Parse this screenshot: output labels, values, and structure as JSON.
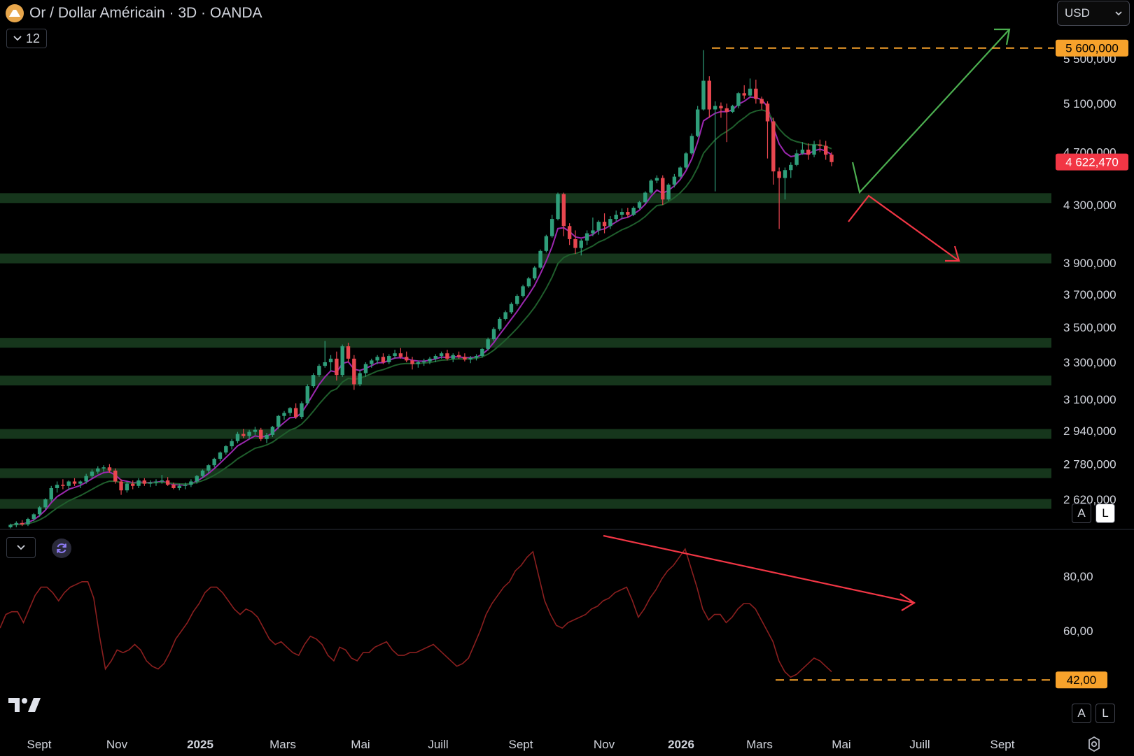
{
  "header": {
    "title": "Or / Dollar Américain · 3D · OANDA",
    "interval_badge": "12",
    "currency": "USD"
  },
  "chart_data": {
    "type": "candlestick",
    "symbol": "XAUUSD",
    "current_price": "4 622,470",
    "price_axis": {
      "ticks": [
        {
          "label": "5 500,000",
          "value": 5500
        },
        {
          "label": "5 100,000",
          "value": 5100
        },
        {
          "label": "4 700,000",
          "value": 4700
        },
        {
          "label": "4 300,000",
          "value": 4300
        },
        {
          "label": "3 900,000",
          "value": 3900
        },
        {
          "label": "3 700,000",
          "value": 3700
        },
        {
          "label": "3 500,000",
          "value": 3500
        },
        {
          "label": "3 300,000",
          "value": 3300
        },
        {
          "label": "3 100,000",
          "value": 3100
        },
        {
          "label": "2 940,000",
          "value": 2940
        },
        {
          "label": "2 780,000",
          "value": 2780
        },
        {
          "label": "2 620,000",
          "value": 2620
        }
      ],
      "scale": "log"
    },
    "price_markers": [
      {
        "label": "5 600,000",
        "value": 5600,
        "color": "#f7a22b",
        "style": "dashed"
      },
      {
        "label": "4 622,470",
        "value": 4622.47,
        "color": "#f23645",
        "style": "solid"
      }
    ],
    "support_zones": [
      4350,
      3930,
      3410,
      3200,
      2925,
      2738,
      2600
    ],
    "time_axis": [
      "Sept",
      "Nov",
      "2025",
      "Mars",
      "Mai",
      "Juill",
      "Sept",
      "Nov",
      "2026",
      "Mars",
      "Mai",
      "Juill",
      "Sept"
    ],
    "time_axis_bold": [
      "2025",
      "2026"
    ],
    "candles_ohlc": [
      [
        2500,
        2515,
        2495,
        2510
      ],
      [
        2510,
        2525,
        2500,
        2518
      ],
      [
        2518,
        2530,
        2505,
        2512
      ],
      [
        2512,
        2540,
        2505,
        2535
      ],
      [
        2535,
        2560,
        2525,
        2555
      ],
      [
        2555,
        2590,
        2545,
        2585
      ],
      [
        2585,
        2625,
        2575,
        2620
      ],
      [
        2620,
        2680,
        2610,
        2670
      ],
      [
        2670,
        2700,
        2650,
        2685
      ],
      [
        2685,
        2710,
        2665,
        2680
      ],
      [
        2680,
        2705,
        2660,
        2700
      ],
      [
        2700,
        2715,
        2680,
        2690
      ],
      [
        2690,
        2705,
        2670,
        2700
      ],
      [
        2700,
        2735,
        2690,
        2725
      ],
      [
        2725,
        2755,
        2715,
        2745
      ],
      [
        2745,
        2770,
        2735,
        2760
      ],
      [
        2760,
        2775,
        2745,
        2765
      ],
      [
        2765,
        2780,
        2740,
        2750
      ],
      [
        2750,
        2760,
        2690,
        2700
      ],
      [
        2700,
        2710,
        2640,
        2660
      ],
      [
        2660,
        2700,
        2650,
        2690
      ],
      [
        2690,
        2705,
        2665,
        2680
      ],
      [
        2680,
        2715,
        2670,
        2705
      ],
      [
        2705,
        2715,
        2680,
        2690
      ],
      [
        2690,
        2705,
        2675,
        2695
      ],
      [
        2695,
        2710,
        2680,
        2700
      ],
      [
        2700,
        2730,
        2690,
        2705
      ],
      [
        2705,
        2720,
        2680,
        2685
      ],
      [
        2685,
        2695,
        2665,
        2670
      ],
      [
        2670,
        2690,
        2660,
        2680
      ],
      [
        2680,
        2695,
        2665,
        2685
      ],
      [
        2685,
        2710,
        2675,
        2700
      ],
      [
        2700,
        2730,
        2690,
        2725
      ],
      [
        2725,
        2755,
        2715,
        2750
      ],
      [
        2750,
        2780,
        2740,
        2775
      ],
      [
        2775,
        2810,
        2765,
        2805
      ],
      [
        2805,
        2840,
        2795,
        2835
      ],
      [
        2835,
        2870,
        2825,
        2865
      ],
      [
        2865,
        2900,
        2850,
        2890
      ],
      [
        2890,
        2935,
        2880,
        2925
      ],
      [
        2925,
        2950,
        2905,
        2915
      ],
      [
        2915,
        2945,
        2900,
        2935
      ],
      [
        2935,
        2960,
        2920,
        2945
      ],
      [
        2945,
        2955,
        2890,
        2900
      ],
      [
        2900,
        2930,
        2880,
        2920
      ],
      [
        2920,
        2965,
        2910,
        2960
      ],
      [
        2960,
        3020,
        2950,
        3015
      ],
      [
        3015,
        3040,
        2995,
        3030
      ],
      [
        3030,
        3060,
        3015,
        3055
      ],
      [
        3055,
        3080,
        3000,
        3010
      ],
      [
        3010,
        3090,
        3000,
        3080
      ],
      [
        3080,
        3180,
        3070,
        3170
      ],
      [
        3170,
        3240,
        3160,
        3230
      ],
      [
        3230,
        3290,
        3220,
        3280
      ],
      [
        3280,
        3420,
        3270,
        3300
      ],
      [
        3300,
        3340,
        3250,
        3320
      ],
      [
        3320,
        3360,
        3200,
        3230
      ],
      [
        3230,
        3400,
        3220,
        3390
      ],
      [
        3390,
        3410,
        3300,
        3320
      ],
      [
        3320,
        3340,
        3150,
        3180
      ],
      [
        3180,
        3260,
        3170,
        3240
      ],
      [
        3240,
        3300,
        3220,
        3290
      ],
      [
        3290,
        3320,
        3270,
        3310
      ],
      [
        3310,
        3340,
        3290,
        3330
      ],
      [
        3330,
        3350,
        3290,
        3300
      ],
      [
        3300,
        3345,
        3290,
        3335
      ],
      [
        3335,
        3370,
        3320,
        3350
      ],
      [
        3350,
        3380,
        3320,
        3330
      ],
      [
        3330,
        3360,
        3300,
        3310
      ],
      [
        3310,
        3330,
        3260,
        3290
      ],
      [
        3290,
        3310,
        3270,
        3300
      ],
      [
        3300,
        3320,
        3280,
        3305
      ],
      [
        3305,
        3330,
        3290,
        3320
      ],
      [
        3320,
        3345,
        3300,
        3335
      ],
      [
        3335,
        3360,
        3320,
        3350
      ],
      [
        3350,
        3370,
        3310,
        3320
      ],
      [
        3320,
        3350,
        3300,
        3340
      ],
      [
        3340,
        3360,
        3320,
        3330
      ],
      [
        3330,
        3350,
        3305,
        3315
      ],
      [
        3315,
        3335,
        3295,
        3325
      ],
      [
        3325,
        3345,
        3310,
        3335
      ],
      [
        3335,
        3380,
        3325,
        3375
      ],
      [
        3375,
        3440,
        3365,
        3430
      ],
      [
        3430,
        3500,
        3420,
        3490
      ],
      [
        3490,
        3560,
        3480,
        3550
      ],
      [
        3550,
        3600,
        3540,
        3590
      ],
      [
        3590,
        3650,
        3580,
        3640
      ],
      [
        3640,
        3700,
        3630,
        3690
      ],
      [
        3690,
        3760,
        3680,
        3750
      ],
      [
        3750,
        3810,
        3740,
        3800
      ],
      [
        3800,
        3880,
        3790,
        3870
      ],
      [
        3870,
        3990,
        3860,
        3980
      ],
      [
        3980,
        4090,
        3970,
        4080
      ],
      [
        4080,
        4230,
        4070,
        4200
      ],
      [
        4200,
        4390,
        4190,
        4380
      ],
      [
        4380,
        4390,
        4080,
        4150
      ],
      [
        4150,
        4170,
        4020,
        4060
      ],
      [
        4060,
        4120,
        3960,
        4000
      ],
      [
        4000,
        4060,
        3950,
        4050
      ],
      [
        4050,
        4120,
        4020,
        4100
      ],
      [
        4100,
        4210,
        4080,
        4120
      ],
      [
        4120,
        4190,
        4090,
        4180
      ],
      [
        4180,
        4240,
        4100,
        4150
      ],
      [
        4150,
        4220,
        4130,
        4200
      ],
      [
        4200,
        4260,
        4180,
        4230
      ],
      [
        4230,
        4275,
        4200,
        4250
      ],
      [
        4250,
        4280,
        4210,
        4230
      ],
      [
        4230,
        4290,
        4220,
        4280
      ],
      [
        4280,
        4330,
        4270,
        4320
      ],
      [
        4320,
        4400,
        4310,
        4390
      ],
      [
        4390,
        4490,
        4380,
        4480
      ],
      [
        4480,
        4520,
        4460,
        4500
      ],
      [
        4500,
        4520,
        4300,
        4340
      ],
      [
        4340,
        4460,
        4330,
        4450
      ],
      [
        4450,
        4530,
        4430,
        4510
      ],
      [
        4510,
        4590,
        4500,
        4580
      ],
      [
        4580,
        4700,
        4570,
        4690
      ],
      [
        4690,
        4850,
        4680,
        4830
      ],
      [
        4830,
        5080,
        4820,
        5050
      ],
      [
        5050,
        5580,
        5040,
        5300
      ],
      [
        5300,
        5340,
        4980,
        5050
      ],
      [
        5050,
        5120,
        4400,
        5080
      ],
      [
        5080,
        5110,
        4980,
        5060
      ],
      [
        5060,
        5100,
        4780,
        5030
      ],
      [
        5030,
        5090,
        5020,
        5080
      ],
      [
        5080,
        5200,
        5060,
        5190
      ],
      [
        5190,
        5260,
        5140,
        5170
      ],
      [
        5170,
        5320,
        5150,
        5230
      ],
      [
        5230,
        5310,
        5100,
        5140
      ],
      [
        5140,
        5160,
        5050,
        5100
      ],
      [
        5100,
        5120,
        4650,
        4950
      ],
      [
        4950,
        4980,
        4450,
        4550
      ],
      [
        4550,
        4580,
        4130,
        4500
      ],
      [
        4500,
        4580,
        4340,
        4560
      ],
      [
        4560,
        4620,
        4500,
        4600
      ],
      [
        4600,
        4720,
        4590,
        4690
      ],
      [
        4690,
        4780,
        4680,
        4720
      ],
      [
        4720,
        4770,
        4640,
        4680
      ],
      [
        4680,
        4790,
        4660,
        4760
      ],
      [
        4760,
        4800,
        4700,
        4750
      ],
      [
        4750,
        4790,
        4640,
        4680
      ],
      [
        4680,
        4700,
        4590,
        4622
      ]
    ],
    "moving_averages": [
      {
        "name": "short",
        "color": "#9c27b0"
      },
      {
        "name": "long",
        "color": "#1f5e2c"
      }
    ],
    "oscillator": {
      "axis_ticks": [
        {
          "label": "80,00",
          "value": 80
        },
        {
          "label": "60,00",
          "value": 60
        }
      ],
      "marker": {
        "label": "42,00",
        "value": 42,
        "color": "#f7a22b"
      },
      "values": [
        61,
        66,
        67,
        67,
        63,
        68,
        73,
        76,
        76,
        74,
        71,
        74,
        76,
        77,
        78,
        78,
        72,
        58,
        46,
        49,
        53,
        52,
        53,
        55,
        53,
        49,
        47,
        46,
        48,
        52,
        57,
        60,
        63,
        67,
        70,
        74,
        76,
        76,
        74,
        71,
        68,
        66,
        68,
        67,
        65,
        61,
        57,
        55,
        56,
        54,
        52,
        51,
        55,
        58,
        57,
        55,
        51,
        49,
        54,
        53,
        50,
        49,
        52,
        52,
        54,
        55,
        56,
        53,
        51,
        51,
        52,
        52,
        53,
        54,
        55,
        53,
        51,
        49,
        47,
        48,
        50,
        55,
        60,
        66,
        70,
        73,
        76,
        78,
        82,
        84,
        87,
        89,
        80,
        71,
        66,
        62,
        61,
        63,
        64,
        65,
        66,
        68,
        69,
        71,
        72,
        74,
        75,
        76,
        71,
        65,
        68,
        72,
        75,
        79,
        82,
        84,
        87,
        90,
        83,
        76,
        68,
        64,
        66,
        66,
        63,
        65,
        68,
        70,
        70,
        68,
        64,
        60,
        56,
        49,
        45,
        43,
        44,
        46,
        48,
        50,
        49,
        47,
        45
      ]
    },
    "annotations": {
      "bull_arrow_color": "#4caf50",
      "bear_arrow_color": "#f23645",
      "divergence_line_color": "#f23645"
    }
  },
  "controls": {
    "auto_scale_label": "A",
    "log_scale_label": "L",
    "auto_scale_label_2": "A",
    "log_scale_label_2": "L"
  },
  "icons": [
    "chevron-down-icon",
    "refresh-icon",
    "tradingview-logo",
    "settings-icon"
  ]
}
